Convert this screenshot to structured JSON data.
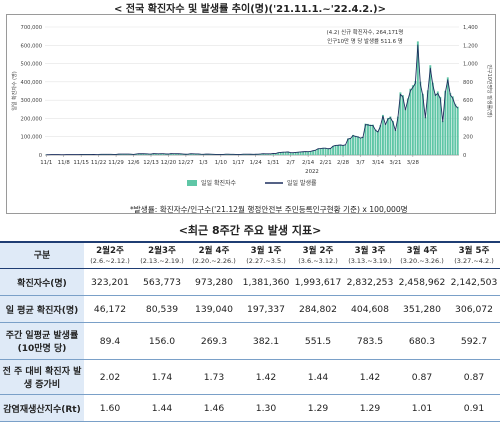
{
  "page": {
    "chart_title": "< 전국 확진자수 및 발생률 추이(명)('21.11.1.~'22.4.2.)>",
    "footnote": "*발생률: 확진자수/인구수('21.12월 행정안전부 주민등록인구현황 기준) x 100,000명",
    "table_title": "<최근 8주간 주요 발생 지표>"
  },
  "chart_data": {
    "type": "bar+line",
    "x_ticks": [
      "11/1",
      "11/8",
      "11/15",
      "11/22",
      "11/29",
      "12/6",
      "12/13",
      "12/20",
      "12/27",
      "1/3",
      "1/10",
      "1/17",
      "1/24",
      "1/31",
      "2/7",
      "2/14",
      "2/21",
      "2/28",
      "3/7",
      "3/14",
      "3/21",
      "3/28"
    ],
    "x_year_label": "2022",
    "y_left": {
      "label": "일일 확진자수 (명)",
      "ticks": [
        "0",
        "100,000",
        "200,000",
        "300,000",
        "400,000",
        "500,000",
        "600,000",
        "700,000"
      ],
      "lim": [
        0,
        700000
      ]
    },
    "y_right": {
      "label": "인구10만명당 발생률(명)",
      "ticks": [
        "0",
        "200",
        "400",
        "600",
        "800",
        "1,000",
        "1,200",
        "1,400"
      ],
      "lim": [
        0,
        1400
      ]
    },
    "annotation": [
      "(4.2) 신규 확진자수, 264,171명",
      "인구10만 명 당 발생률 511.6 명"
    ],
    "start_date": "2021-11-01",
    "series": [
      {
        "name": "일일 확진자수",
        "color": "#5fc6a6",
        "values": [
          1680,
          1589,
          2667,
          2481,
          2343,
          2247,
          1758,
          1758,
          2407,
          2425,
          2520,
          2368,
          2231,
          2419,
          3187,
          3292,
          3163,
          3206,
          3034,
          2827,
          2699,
          3120,
          3938,
          4115,
          4067,
          4068,
          3928,
          3309,
          3032,
          4944,
          5123,
          5266,
          5352,
          5128,
          4325,
          3308,
          5267,
          7175,
          7102,
          7022,
          6977,
          5817,
          5318,
          7850,
          7173,
          6688,
          7436,
          7314,
          6236,
          5567,
          7849,
          7621,
          7433,
          7086,
          6590,
          5419,
          4207,
          5417,
          7456,
          6917,
          6236,
          5842,
          4414,
          3865,
          5037,
          4875,
          4416,
          3833,
          3127,
          3004,
          3035,
          3127,
          4443,
          4383,
          4126,
          3715,
          3373,
          3097,
          3006,
          4567,
          4542,
          4385,
          4167,
          3857,
          4194,
          4388,
          5805,
          7513,
          6603,
          6768,
          6947,
          8571,
          8097,
          13012,
          14518,
          16096,
          16285,
          17532,
          13009,
          13007,
          14515,
          15805,
          17079,
          18338,
          19400,
          18800,
          20270,
          24500,
          27440,
          35281,
          36362,
          38688,
          38691,
          35286,
          36719,
          49567,
          54121,
          54941,
          56431,
          53926,
          57177,
          90443,
          93135,
          109831,
          104829,
          102211,
          95362,
          99573,
          171452,
          170016,
          166195,
          165889,
          139626,
          130000,
          163565,
          219241,
          171452,
          202721,
          210716,
          185566,
          137333,
          210000,
          342446,
          327549,
          254327,
          309779,
          362338,
          381454,
          405000,
          621328,
          400624,
          334708,
          209000,
          353979,
          490881,
          395598,
          335582,
          347554,
          318130,
          187213,
          351016,
          424641,
          339514,
          320743,
          280273,
          264171
        ]
      },
      {
        "name": "일일 발생률",
        "color": "#1d2f5e",
        "values": [
          3.3,
          3.1,
          5.2,
          4.8,
          4.5,
          4.4,
          3.4,
          3.4,
          4.7,
          4.7,
          4.9,
          4.6,
          4.3,
          4.7,
          6.2,
          6.4,
          6.1,
          6.2,
          5.9,
          5.5,
          5.2,
          6.0,
          7.6,
          8.0,
          7.9,
          7.9,
          7.6,
          6.4,
          5.9,
          9.6,
          9.9,
          10.2,
          10.4,
          9.9,
          8.4,
          6.4,
          10.2,
          13.9,
          13.8,
          13.6,
          13.5,
          11.3,
          10.3,
          15.2,
          13.9,
          13.0,
          14.4,
          14.2,
          12.1,
          10.8,
          15.2,
          14.8,
          14.4,
          13.7,
          12.8,
          10.5,
          8.2,
          10.5,
          14.5,
          13.4,
          12.1,
          11.3,
          8.6,
          7.5,
          9.8,
          9.5,
          8.6,
          7.4,
          6.1,
          5.8,
          5.9,
          6.1,
          8.6,
          8.5,
          8.0,
          7.2,
          6.5,
          6.0,
          5.8,
          8.9,
          8.8,
          8.5,
          8.1,
          7.5,
          8.1,
          8.5,
          11.2,
          14.6,
          12.8,
          13.1,
          13.5,
          16.6,
          15.7,
          25.2,
          28.1,
          31.2,
          31.6,
          34.0,
          25.2,
          25.2,
          28.1,
          30.6,
          33.1,
          35.5,
          37.6,
          36.4,
          39.3,
          47.5,
          53.2,
          68.4,
          70.4,
          75.0,
          75.0,
          68.4,
          71.1,
          96.1,
          104.9,
          106.5,
          109.4,
          104.5,
          110.8,
          175.3,
          180.5,
          212.8,
          203.2,
          198.1,
          184.8,
          193.0,
          332.2,
          329.4,
          322.1,
          321.5,
          270.6,
          251.9,
          317.0,
          424.8,
          332.2,
          392.8,
          408.3,
          359.6,
          266.1,
          406.9,
          663.6,
          634.7,
          492.8,
          600.3,
          702.1,
          739.2,
          784.8,
          1204.0,
          776.3,
          648.6,
          405.0,
          685.9,
          951.2,
          766.6,
          650.3,
          673.5,
          616.5,
          362.8,
          680.2,
          822.9,
          657.9,
          621.5,
          543.1,
          511.6
        ]
      }
    ]
  },
  "table": {
    "corner": "구분",
    "columns": [
      {
        "label": "2월2주",
        "sub": "(2.6.~2.12.)"
      },
      {
        "label": "2월3주",
        "sub": "(2.13.~2.19.)"
      },
      {
        "label": "2월 4주",
        "sub": "(2.20.~2.26.)"
      },
      {
        "label": "3월 1주",
        "sub": "(2.27.~3.5.)"
      },
      {
        "label": "3월 2주",
        "sub": "(3.6.~3.12.)"
      },
      {
        "label": "3월 3주",
        "sub": "(3.13.~3.19.)"
      },
      {
        "label": "3월 4주",
        "sub": "(3.20.~3.26.)"
      },
      {
        "label": "3월 5주",
        "sub": "(3.27.~4.2.)"
      }
    ],
    "rows": [
      {
        "label": "확진자수(명)",
        "values": [
          "323,201",
          "563,773",
          "973,280",
          "1,381,360",
          "1,993,617",
          "2,832,253",
          "2,458,962",
          "2,142,503"
        ]
      },
      {
        "label": "일 평균 확진자(명)",
        "values": [
          "46,172",
          "80,539",
          "139,040",
          "197,337",
          "284,802",
          "404,608",
          "351,280",
          "306,072"
        ]
      },
      {
        "label": "주간 일평균 발생률(10만명 당)",
        "values": [
          "89.4",
          "156.0",
          "269.3",
          "382.1",
          "551.5",
          "783.5",
          "680.3",
          "592.7"
        ]
      },
      {
        "label": "전 주 대비 확진자 발생 증가비",
        "values": [
          "2.02",
          "1.74",
          "1.73",
          "1.42",
          "1.44",
          "1.42",
          "0.87",
          "0.87"
        ]
      },
      {
        "label": "감염재생산지수(Rt)",
        "values": [
          "1.60",
          "1.44",
          "1.46",
          "1.30",
          "1.29",
          "1.29",
          "1.01",
          "0.91"
        ]
      }
    ]
  }
}
